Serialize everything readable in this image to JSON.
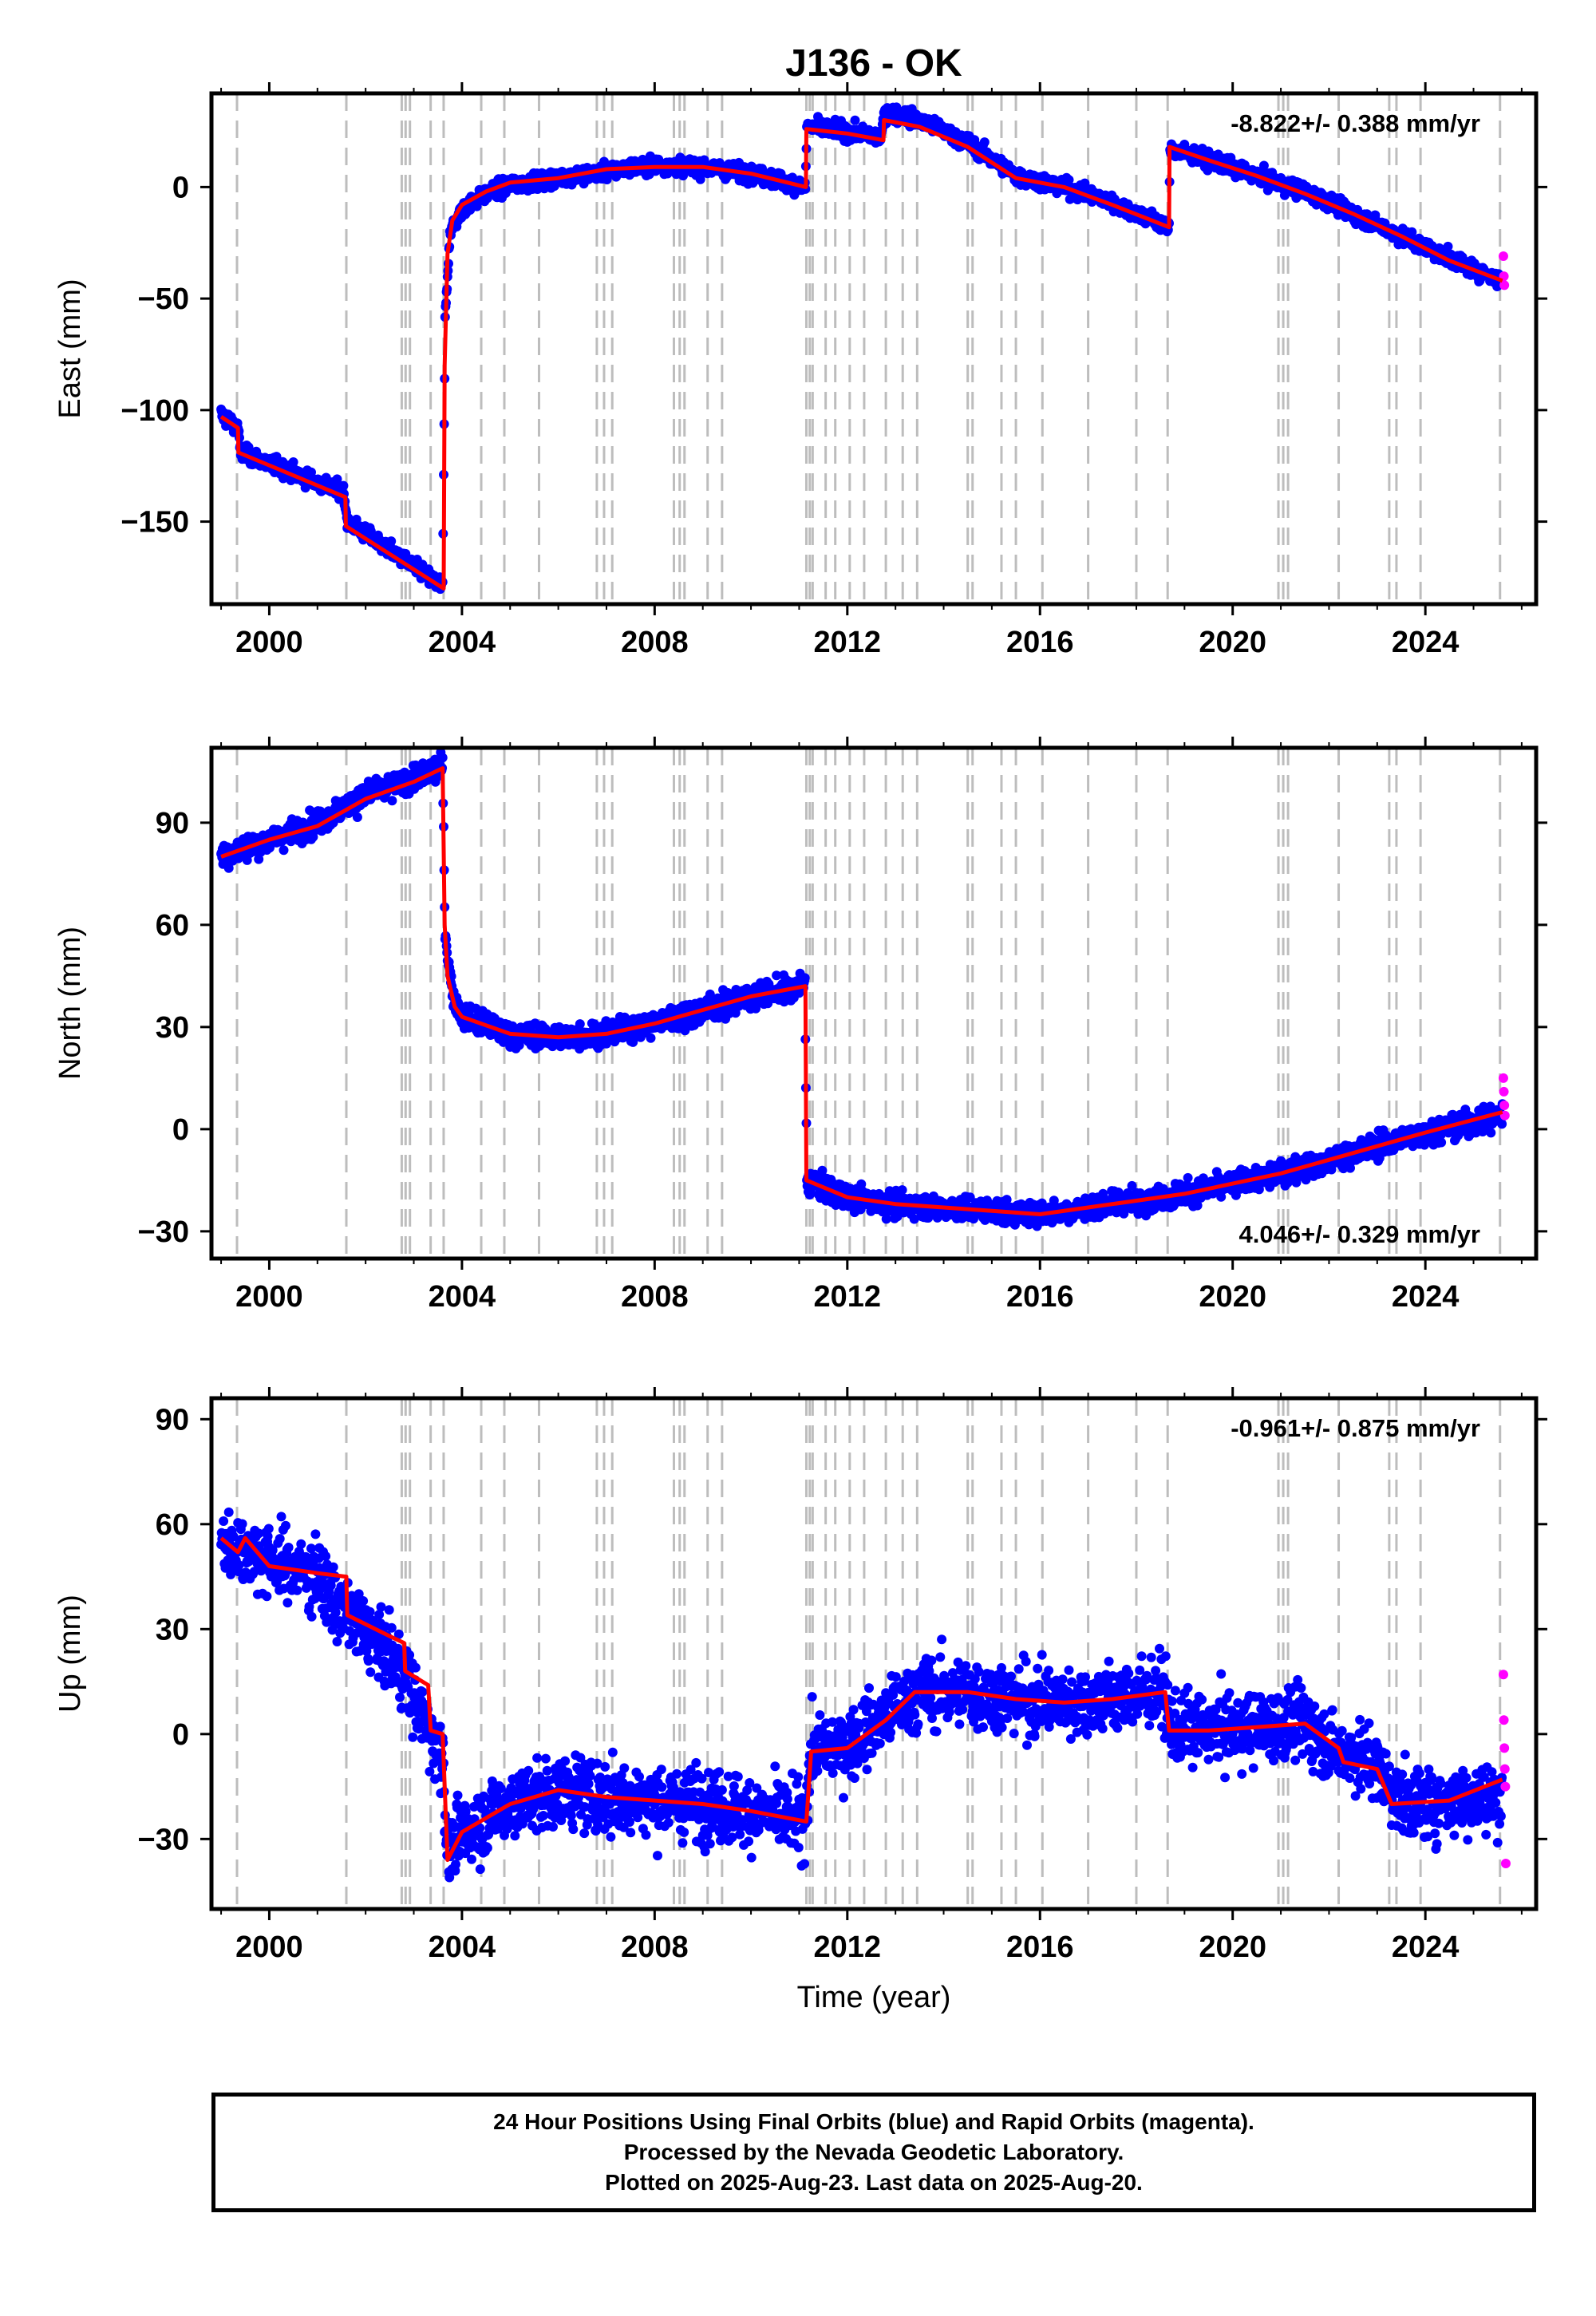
{
  "title": "J136 - OK",
  "colors": {
    "final_points": "#0000ff",
    "rapid_points": "#ff00ff",
    "model": "#ff0000",
    "event_lines": "#bdbdbd",
    "axis": "#000000"
  },
  "x_axis": {
    "label": "Time (year)",
    "range": [
      1998.8,
      2026.3
    ],
    "ticks": [
      2000,
      2004,
      2008,
      2012,
      2016,
      2020,
      2024
    ]
  },
  "event_lines": [
    1999.33,
    2001.6,
    2002.75,
    2002.83,
    2002.92,
    2003.35,
    2003.62,
    2004.4,
    2004.88,
    2005.6,
    2006.8,
    2006.95,
    2007.12,
    2008.4,
    2008.52,
    2008.62,
    2009.1,
    2009.4,
    2011.15,
    2011.22,
    2011.28,
    2011.55,
    2011.75,
    2012.05,
    2012.35,
    2012.8,
    2013.15,
    2013.45,
    2014.5,
    2014.6,
    2015.2,
    2015.5,
    2016.05,
    2017.0,
    2018.0,
    2018.65,
    2020.95,
    2021.05,
    2021.15,
    2022.2,
    2023.25,
    2023.4,
    2023.9,
    2025.55
  ],
  "chart_data": [
    {
      "type": "scatter",
      "ylabel": "East (mm)",
      "ylim": [
        -187,
        42
      ],
      "yticks": [
        0,
        -50,
        -100,
        -150
      ],
      "rate": "-8.822+/- 0.388 mm/yr",
      "rate_position": "top-right",
      "noise_mm": 2.5,
      "series": [
        {
          "name": "Final Orbits",
          "x": [
            1999.0,
            1999.35,
            1999.4,
            2001.55,
            2001.62,
            2003.6,
            2003.65,
            2003.75,
            2004.0,
            2004.5,
            2005.0,
            2006.0,
            2007.0,
            2008.0,
            2009.0,
            2010.0,
            2011.13,
            2011.16,
            2012.0,
            2012.7,
            2012.78,
            2013.5,
            2014.5,
            2015.5,
            2016.5,
            2017.5,
            2018.68,
            2018.7,
            2019.5,
            2020.5,
            2021.5,
            2022.5,
            2023.5,
            2024.5,
            2025.6
          ],
          "y": [
            -102,
            -108,
            -119,
            -137,
            -150,
            -179,
            -60,
            -20,
            -10,
            -3,
            1,
            4,
            7,
            10,
            9,
            6,
            0,
            27,
            25,
            22,
            34,
            30,
            20,
            5,
            0,
            -7,
            -18,
            17,
            12,
            5,
            -2,
            -12,
            -22,
            -32,
            -42
          ]
        },
        {
          "name": "Rapid Orbits",
          "x": [
            2025.62,
            2025.63,
            2025.64
          ],
          "y": [
            -31,
            -40,
            -44
          ]
        }
      ],
      "model": {
        "x": [
          1999.0,
          1999.35,
          1999.36,
          2001.58,
          2001.59,
          2003.62,
          2003.64,
          2003.7,
          2003.8,
          2004.0,
          2004.5,
          2005.0,
          2006.0,
          2007.0,
          2008.0,
          2009.0,
          2010.0,
          2011.14,
          2011.15,
          2012.0,
          2012.75,
          2012.76,
          2013.5,
          2014.5,
          2015.5,
          2016.5,
          2017.5,
          2018.68,
          2018.69,
          2019.5,
          2020.5,
          2021.5,
          2022.5,
          2023.5,
          2024.5,
          2025.6
        ],
        "y": [
          -103,
          -108,
          -119,
          -139,
          -152,
          -180,
          -80,
          -30,
          -15,
          -8,
          -2,
          2,
          4,
          8,
          9,
          9,
          6,
          0,
          26,
          24,
          21,
          30,
          27,
          18,
          4,
          0,
          -8,
          -18,
          18,
          12,
          5,
          -3,
          -12,
          -22,
          -33,
          -42
        ]
      }
    },
    {
      "type": "scatter",
      "ylabel": "North (mm)",
      "ylim": [
        -38,
        112
      ],
      "yticks": [
        90,
        60,
        30,
        0,
        -30
      ],
      "rate": "4.046+/- 0.329 mm/yr",
      "rate_position": "bottom-right",
      "noise_mm": 2.5,
      "series": [
        {
          "name": "Final Orbits",
          "x": [
            1999.0,
            2000.0,
            2001.0,
            2002.0,
            2003.0,
            2003.6,
            2003.65,
            2003.8,
            2004.0,
            2005.0,
            2006.0,
            2007.0,
            2008.0,
            2009.0,
            2010.0,
            2011.12,
            2011.16,
            2012.0,
            2013.0,
            2014.0,
            2015.0,
            2016.0,
            2017.0,
            2018.0,
            2019.0,
            2020.0,
            2021.0,
            2022.0,
            2023.0,
            2024.0,
            2025.6
          ],
          "y": [
            80,
            85,
            90,
            98,
            103,
            106,
            58,
            40,
            33,
            28,
            27,
            28,
            31,
            35,
            39,
            42,
            -15,
            -20,
            -22,
            -23,
            -24,
            -25,
            -23,
            -21,
            -19,
            -16,
            -13,
            -9,
            -5,
            -1,
            4
          ]
        },
        {
          "name": "Rapid Orbits",
          "x": [
            2025.62,
            2025.63,
            2025.64,
            2025.65
          ],
          "y": [
            15,
            11,
            7,
            4
          ]
        }
      ],
      "model": {
        "x": [
          1999.0,
          2000.0,
          2001.0,
          2002.0,
          2003.0,
          2003.6,
          2003.64,
          2003.7,
          2003.85,
          2004.0,
          2005.0,
          2006.0,
          2007.0,
          2008.0,
          2009.0,
          2010.0,
          2011.13,
          2011.15,
          2012.0,
          2013.0,
          2014.0,
          2015.0,
          2016.0,
          2017.0,
          2018.0,
          2019.0,
          2020.0,
          2021.0,
          2022.0,
          2023.0,
          2024.0,
          2025.6
        ],
        "y": [
          80,
          85,
          89,
          97,
          102,
          106,
          60,
          45,
          36,
          33,
          28,
          27,
          28,
          31,
          35,
          39,
          42,
          -15,
          -20,
          -22,
          -23,
          -24,
          -25,
          -23,
          -21,
          -19,
          -16,
          -13,
          -9,
          -5,
          -1,
          5
        ]
      }
    },
    {
      "type": "scatter",
      "ylabel": "Up (mm)",
      "ylim": [
        -50,
        96
      ],
      "yticks": [
        90,
        60,
        30,
        0,
        -30
      ],
      "rate": "-0.961+/- 0.875 mm/yr",
      "rate_position": "top-right",
      "noise_mm": 7,
      "series": [
        {
          "name": "Final Orbits",
          "x": [
            1999.0,
            2000.0,
            2001.0,
            2001.6,
            2002.0,
            2002.8,
            2003.35,
            2003.6,
            2003.7,
            2004.0,
            2005.0,
            2006.0,
            2007.0,
            2008.0,
            2009.0,
            2010.0,
            2011.1,
            2011.25,
            2012.0,
            2012.8,
            2013.5,
            2014.5,
            2015.5,
            2016.5,
            2017.5,
            2018.6,
            2018.7,
            2019.5,
            2020.5,
            2021.5,
            2022.2,
            2022.5,
            2023.0,
            2023.5,
            2024.5,
            2025.6
          ],
          "y": [
            55,
            50,
            45,
            34,
            30,
            17,
            0,
            -5,
            -35,
            -28,
            -20,
            -16,
            -18,
            -19,
            -20,
            -22,
            -25,
            -5,
            -3,
            5,
            12,
            12,
            10,
            9,
            10,
            12,
            1,
            1,
            2,
            3,
            -6,
            -5,
            -10,
            -20,
            -19,
            -18
          ]
        },
        {
          "name": "Rapid Orbits",
          "x": [
            2025.62,
            2025.63,
            2025.64,
            2025.65,
            2025.66,
            2025.67
          ],
          "y": [
            17,
            4,
            -4,
            -10,
            -15,
            -37
          ]
        }
      ],
      "model": {
        "x": [
          1999.0,
          1999.35,
          1999.5,
          2000.0,
          2001.0,
          2001.6,
          2001.62,
          2002.5,
          2002.8,
          2002.82,
          2003.3,
          2003.35,
          2003.6,
          2003.7,
          2004.0,
          2005.0,
          2006.0,
          2007.0,
          2008.0,
          2009.0,
          2010.0,
          2011.15,
          2011.25,
          2012.0,
          2012.8,
          2013.4,
          2014.5,
          2015.5,
          2016.5,
          2017.5,
          2018.6,
          2018.68,
          2019.5,
          2020.5,
          2021.5,
          2022.2,
          2022.3,
          2023.0,
          2023.3,
          2024.5,
          2025.6
        ],
        "y": [
          56,
          52,
          56,
          48,
          46,
          45,
          34,
          28,
          26,
          18,
          14,
          1,
          0,
          -36,
          -28,
          -20,
          -16,
          -18,
          -19,
          -20,
          -22,
          -25,
          -5,
          -4,
          4,
          12,
          12,
          10,
          9,
          10,
          12,
          1,
          1,
          2,
          3,
          -4,
          -8,
          -10,
          -20,
          -19,
          -13
        ]
      }
    }
  ],
  "caption": {
    "line1": "24 Hour Positions Using Final Orbits (blue) and Rapid Orbits (magenta).",
    "line2": "Processed by the Nevada Geodetic Laboratory.",
    "line3": "Plotted on 2025-Aug-23. Last data on 2025-Aug-20."
  }
}
